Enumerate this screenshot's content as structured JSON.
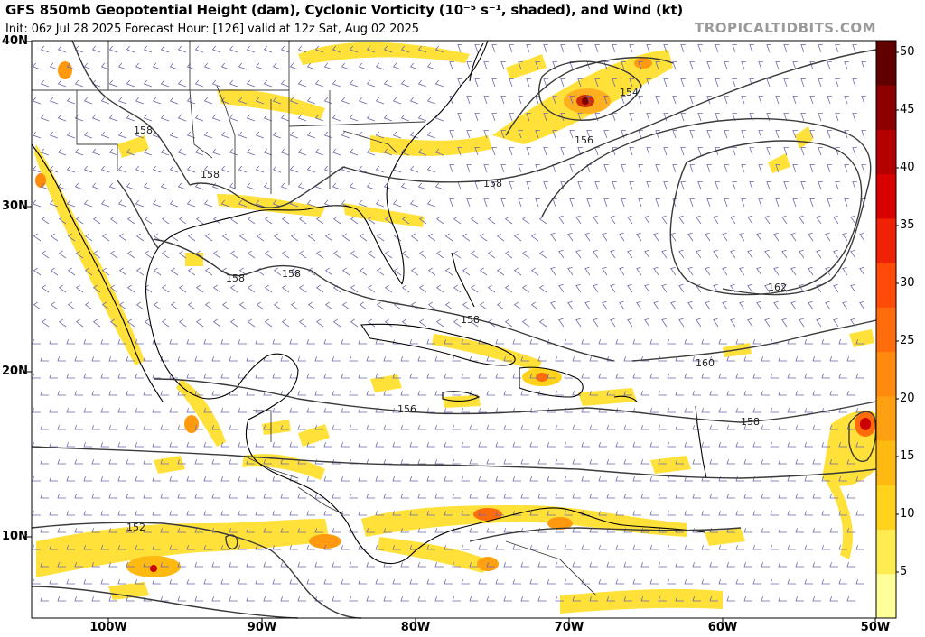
{
  "header": {
    "title": "GFS 850mb Geopotential Height (dam), Cyclonic Vorticity (10⁻⁵ s⁻¹, shaded), and Wind (kt)",
    "subtitle": "Init: 06z Jul 28 2025   Forecast Hour: [126]   valid at 12z Sat, Aug 02 2025",
    "brand": "TROPICALTIDBITS.COM"
  },
  "axes": {
    "lat_labels": [
      "40N",
      "30N",
      "20N",
      "10N"
    ],
    "lon_labels": [
      "100W",
      "90W",
      "80W",
      "70W",
      "60W",
      "50W"
    ]
  },
  "colorbar": {
    "ticks": [
      "50",
      "45",
      "40",
      "35",
      "30",
      "25",
      "20",
      "15",
      "10",
      "5"
    ],
    "colors": [
      "#ffff99",
      "#ffec50",
      "#ffd21c",
      "#ffba12",
      "#ffa010",
      "#ff8a0e",
      "#ff6c0c",
      "#ff4a08",
      "#f02206",
      "#d80000",
      "#b40000",
      "#8c0000",
      "#600000"
    ]
  },
  "contour_labels": [
    "154",
    "156",
    "158",
    "158",
    "158",
    "158",
    "158",
    "158",
    "158",
    "156",
    "152",
    "162",
    "160",
    "158"
  ],
  "colors": {
    "contour": "#3a3a3a",
    "coast": "#000000",
    "border": "#3c3c3c",
    "wind_barb": "#6a6aa8",
    "vort_low": "#ffe13a",
    "vort_mid": "#ff9a10",
    "vort_high": "#cc0000",
    "brand": "#9a9a9a"
  }
}
